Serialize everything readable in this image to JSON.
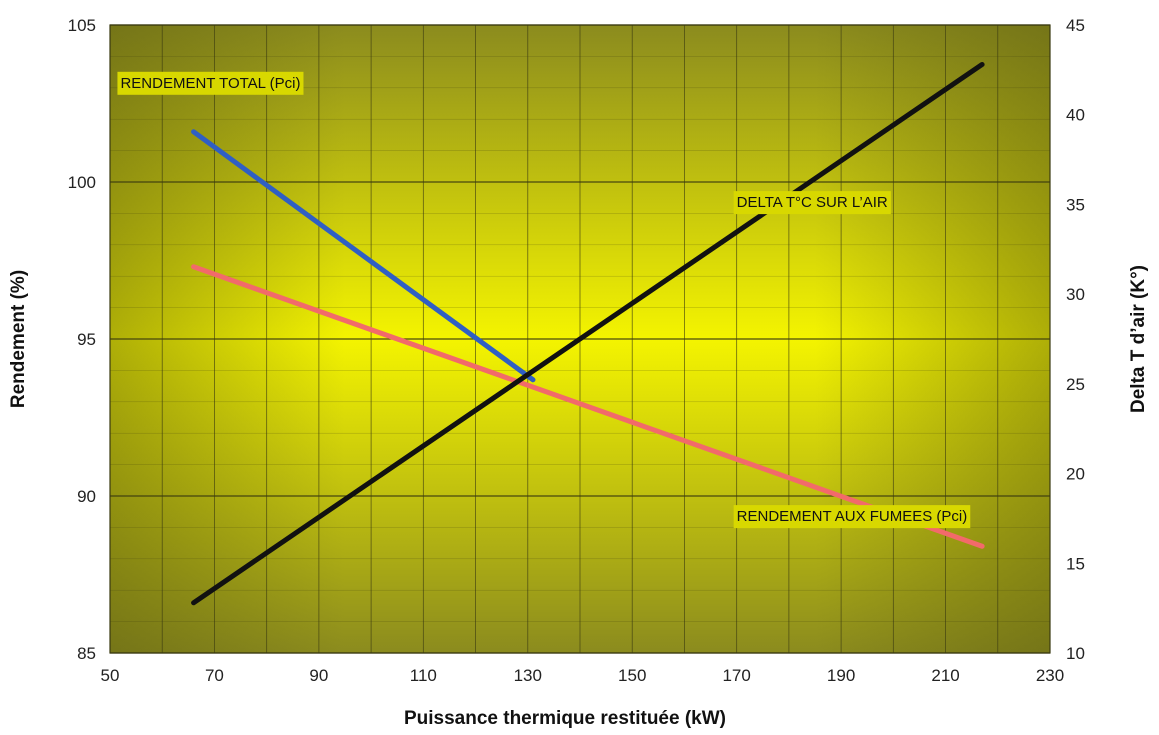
{
  "chart_data": {
    "type": "line",
    "title": "",
    "xlabel": "Puissance thermique restituée (kW)",
    "ylabel": "Rendement (%)",
    "y2label": "Delta T d’air (K°)",
    "xlim": [
      50,
      230
    ],
    "ylim": [
      85,
      105
    ],
    "y2lim": [
      10,
      45
    ],
    "x_ticks": [
      "50",
      "70",
      "90",
      "110",
      "130",
      "150",
      "170",
      "190",
      "210",
      "230"
    ],
    "y_ticks": [
      "85",
      "90",
      "95",
      "100",
      "105"
    ],
    "y2_ticks": [
      "10",
      "15",
      "20",
      "25",
      "30",
      "35",
      "40",
      "45"
    ],
    "grid": true,
    "colors": {
      "grid": "#3a3a10",
      "bg_edge": "#8a8a1a",
      "bg_center": "#f4f400",
      "label_bg": "#d8d800"
    },
    "series": [
      {
        "name": "RENDEMENT TOTAL (Pci)",
        "axis": "left",
        "color": "#2f5fc4",
        "x": [
          66,
          131
        ],
        "y": [
          101.6,
          93.7
        ]
      },
      {
        "name": "RENDEMENT AUX FUMEES (Pci)",
        "axis": "left",
        "color": "#f26a6a",
        "x": [
          66,
          217
        ],
        "y": [
          97.3,
          88.4
        ]
      },
      {
        "name": "DELTA T°C SUR L’AIR",
        "axis": "right",
        "color": "#111111",
        "x": [
          66,
          217
        ],
        "y": [
          12.8,
          42.8
        ]
      }
    ],
    "annotations": [
      {
        "text": "RENDEMENT TOTAL (Pci)",
        "x": 52,
        "y": 103.0
      },
      {
        "text": "DELTA T°C SUR L’AIR",
        "x": 170,
        "y": 99.2
      },
      {
        "text": "RENDEMENT AUX FUMEES (Pci)",
        "x": 170,
        "y": 89.2
      }
    ]
  }
}
